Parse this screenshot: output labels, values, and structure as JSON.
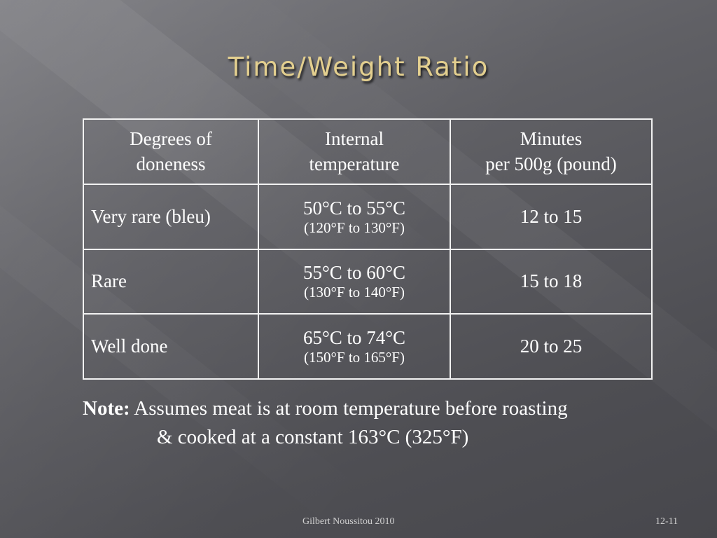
{
  "title": "Time/Weight Ratio",
  "table": {
    "headers": [
      [
        "Degrees of",
        "doneness"
      ],
      [
        "Internal",
        "temperature"
      ],
      [
        "Minutes",
        "per 500g (pound)"
      ]
    ],
    "rows": [
      {
        "doneness": "Very rare (bleu)",
        "temp_c": "50°C to 55°C",
        "temp_f": "(120°F to 130°F)",
        "minutes": "12 to 15"
      },
      {
        "doneness": "Rare",
        "temp_c": "55°C to 60°C",
        "temp_f": "(130°F to 140°F)",
        "minutes": "15 to 18"
      },
      {
        "doneness": "Well done",
        "temp_c": "65°C to 74°C",
        "temp_f": "(150°F to 165°F)",
        "minutes": "20 to 25"
      }
    ]
  },
  "note": {
    "label": "Note:",
    "line1": "Assumes meat is at room temperature before roasting",
    "line2": "& cooked at a constant 163°C (325°F)"
  },
  "footer": {
    "author": "Gilbert Noussitou 2010",
    "page": "12-11"
  }
}
